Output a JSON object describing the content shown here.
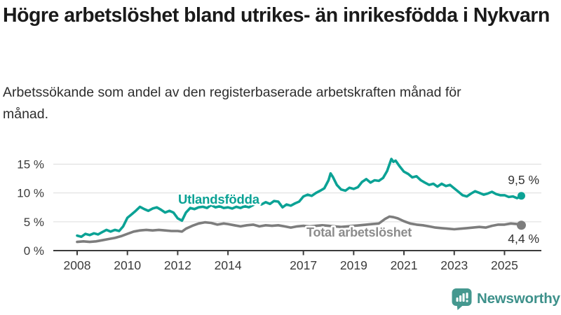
{
  "title": "Högre arbetslöshet bland utrikes- än inrikesfödda i Nykvarn",
  "subtitle": "Arbetssökande som andel av den registerbaserade arbetskraften månad för månad.",
  "colors": {
    "accent_teal": "#0ba295",
    "line_gray": "#7d7d7d",
    "grid": "#dcdcdc",
    "axis": "#3b3b3b",
    "value_label": "#333333"
  },
  "chart_data": {
    "type": "line",
    "grid": "horizontal",
    "legend_position": "inline-labels",
    "x_axis": {
      "range": [
        2007.9,
        2026.3
      ],
      "ticks": [
        {
          "label": "2008",
          "value": 2008
        },
        {
          "label": "2010",
          "value": 2010
        },
        {
          "label": "2012",
          "value": 2012
        },
        {
          "label": "2014",
          "value": 2014
        },
        {
          "label": "2017",
          "value": 2017
        },
        {
          "label": "2019",
          "value": 2019
        },
        {
          "label": "2021",
          "value": 2021
        },
        {
          "label": "2023",
          "value": 2023
        },
        {
          "label": "2025",
          "value": 2025
        }
      ]
    },
    "y_axis": {
      "range": [
        0,
        17.5
      ],
      "unit": "%",
      "ticks": [
        {
          "label": "0 %",
          "value": 0
        },
        {
          "label": "5 %",
          "value": 5
        },
        {
          "label": "10 %",
          "value": 10
        },
        {
          "label": "15 %",
          "value": 15
        }
      ]
    },
    "series": [
      {
        "id": "utlandsfodda",
        "name": "Utlandsfödda",
        "color": "#0ba295",
        "label_color": "#0ba295",
        "end_label": "9,5 %",
        "end_value": 9.5,
        "points": [
          [
            2008.0,
            2.6
          ],
          [
            2008.17,
            2.4
          ],
          [
            2008.33,
            2.9
          ],
          [
            2008.5,
            2.7
          ],
          [
            2008.67,
            3.0
          ],
          [
            2008.83,
            2.8
          ],
          [
            2009.0,
            3.2
          ],
          [
            2009.17,
            3.6
          ],
          [
            2009.33,
            3.3
          ],
          [
            2009.5,
            3.6
          ],
          [
            2009.67,
            3.4
          ],
          [
            2009.83,
            4.2
          ],
          [
            2010.0,
            5.7
          ],
          [
            2010.17,
            6.3
          ],
          [
            2010.33,
            6.9
          ],
          [
            2010.5,
            7.6
          ],
          [
            2010.67,
            7.2
          ],
          [
            2010.83,
            6.9
          ],
          [
            2011.0,
            7.3
          ],
          [
            2011.17,
            7.5
          ],
          [
            2011.33,
            7.1
          ],
          [
            2011.5,
            6.6
          ],
          [
            2011.67,
            6.9
          ],
          [
            2011.83,
            6.6
          ],
          [
            2012.0,
            5.6
          ],
          [
            2012.08,
            5.4
          ],
          [
            2012.17,
            5.2
          ],
          [
            2012.33,
            6.6
          ],
          [
            2012.5,
            7.4
          ],
          [
            2012.67,
            7.2
          ],
          [
            2012.83,
            7.5
          ],
          [
            2013.0,
            7.6
          ],
          [
            2013.17,
            7.4
          ],
          [
            2013.33,
            7.9
          ],
          [
            2013.5,
            7.5
          ],
          [
            2013.67,
            7.7
          ],
          [
            2013.83,
            7.4
          ],
          [
            2014.0,
            7.5
          ],
          [
            2014.17,
            7.3
          ],
          [
            2014.33,
            7.6
          ],
          [
            2014.5,
            7.4
          ],
          [
            2014.67,
            7.7
          ],
          [
            2014.83,
            7.5
          ],
          [
            2015.0,
            7.9
          ],
          [
            2015.17,
            8.3
          ],
          [
            2015.33,
            8.0
          ],
          [
            2015.5,
            8.4
          ],
          [
            2015.67,
            8.1
          ],
          [
            2015.83,
            8.6
          ],
          [
            2016.0,
            8.5
          ],
          [
            2016.17,
            7.5
          ],
          [
            2016.33,
            8.0
          ],
          [
            2016.5,
            7.8
          ],
          [
            2016.67,
            8.2
          ],
          [
            2016.83,
            8.5
          ],
          [
            2017.0,
            9.4
          ],
          [
            2017.17,
            9.7
          ],
          [
            2017.33,
            9.5
          ],
          [
            2017.5,
            10.0
          ],
          [
            2017.67,
            10.4
          ],
          [
            2017.83,
            10.8
          ],
          [
            2018.0,
            12.2
          ],
          [
            2018.08,
            13.4
          ],
          [
            2018.17,
            12.8
          ],
          [
            2018.33,
            11.4
          ],
          [
            2018.5,
            10.6
          ],
          [
            2018.67,
            10.4
          ],
          [
            2018.83,
            10.9
          ],
          [
            2019.0,
            10.7
          ],
          [
            2019.17,
            11.0
          ],
          [
            2019.33,
            11.9
          ],
          [
            2019.5,
            12.4
          ],
          [
            2019.67,
            11.8
          ],
          [
            2019.83,
            12.2
          ],
          [
            2020.0,
            12.1
          ],
          [
            2020.17,
            12.6
          ],
          [
            2020.33,
            13.8
          ],
          [
            2020.5,
            15.9
          ],
          [
            2020.58,
            15.4
          ],
          [
            2020.67,
            15.6
          ],
          [
            2020.83,
            14.6
          ],
          [
            2021.0,
            13.7
          ],
          [
            2021.17,
            13.3
          ],
          [
            2021.33,
            12.7
          ],
          [
            2021.5,
            12.9
          ],
          [
            2021.67,
            12.2
          ],
          [
            2021.83,
            11.8
          ],
          [
            2022.0,
            11.4
          ],
          [
            2022.17,
            11.6
          ],
          [
            2022.33,
            11.1
          ],
          [
            2022.5,
            11.6
          ],
          [
            2022.67,
            11.2
          ],
          [
            2022.83,
            11.4
          ],
          [
            2023.0,
            10.8
          ],
          [
            2023.17,
            10.2
          ],
          [
            2023.33,
            9.6
          ],
          [
            2023.5,
            9.4
          ],
          [
            2023.67,
            9.9
          ],
          [
            2023.83,
            10.3
          ],
          [
            2024.0,
            10.0
          ],
          [
            2024.17,
            9.7
          ],
          [
            2024.33,
            9.9
          ],
          [
            2024.5,
            10.2
          ],
          [
            2024.67,
            9.8
          ],
          [
            2024.83,
            9.6
          ],
          [
            2025.0,
            9.6
          ],
          [
            2025.17,
            9.3
          ],
          [
            2025.33,
            9.4
          ],
          [
            2025.5,
            9.1
          ],
          [
            2025.67,
            9.5
          ]
        ]
      },
      {
        "id": "total",
        "name": "Total arbetslöshet",
        "color": "#7d7d7d",
        "label_color": "#8c8c8c",
        "end_label": "4,4 %",
        "end_value": 4.4,
        "points": [
          [
            2008.0,
            1.5
          ],
          [
            2008.25,
            1.6
          ],
          [
            2008.5,
            1.5
          ],
          [
            2008.75,
            1.6
          ],
          [
            2009.0,
            1.8
          ],
          [
            2009.25,
            2.0
          ],
          [
            2009.5,
            2.2
          ],
          [
            2009.75,
            2.5
          ],
          [
            2010.0,
            2.9
          ],
          [
            2010.25,
            3.3
          ],
          [
            2010.5,
            3.5
          ],
          [
            2010.75,
            3.6
          ],
          [
            2011.0,
            3.5
          ],
          [
            2011.25,
            3.6
          ],
          [
            2011.5,
            3.5
          ],
          [
            2011.75,
            3.4
          ],
          [
            2012.0,
            3.4
          ],
          [
            2012.17,
            3.3
          ],
          [
            2012.33,
            3.8
          ],
          [
            2012.58,
            4.3
          ],
          [
            2012.83,
            4.7
          ],
          [
            2013.08,
            4.9
          ],
          [
            2013.33,
            4.8
          ],
          [
            2013.58,
            4.5
          ],
          [
            2013.83,
            4.7
          ],
          [
            2014.0,
            4.6
          ],
          [
            2014.25,
            4.4
          ],
          [
            2014.5,
            4.2
          ],
          [
            2014.75,
            4.4
          ],
          [
            2015.0,
            4.5
          ],
          [
            2015.25,
            4.2
          ],
          [
            2015.5,
            4.4
          ],
          [
            2015.75,
            4.3
          ],
          [
            2016.0,
            4.4
          ],
          [
            2016.25,
            4.2
          ],
          [
            2016.5,
            4.0
          ],
          [
            2016.75,
            4.2
          ],
          [
            2017.0,
            4.3
          ],
          [
            2017.25,
            4.2
          ],
          [
            2017.5,
            4.3
          ],
          [
            2017.75,
            4.4
          ],
          [
            2018.0,
            4.3
          ],
          [
            2018.25,
            4.2
          ],
          [
            2018.5,
            4.1
          ],
          [
            2018.75,
            4.2
          ],
          [
            2019.0,
            4.3
          ],
          [
            2019.25,
            4.4
          ],
          [
            2019.5,
            4.5
          ],
          [
            2019.75,
            4.6
          ],
          [
            2020.0,
            4.7
          ],
          [
            2020.25,
            5.5
          ],
          [
            2020.42,
            5.9
          ],
          [
            2020.58,
            5.8
          ],
          [
            2020.75,
            5.6
          ],
          [
            2021.0,
            5.1
          ],
          [
            2021.25,
            4.7
          ],
          [
            2021.5,
            4.5
          ],
          [
            2021.75,
            4.4
          ],
          [
            2022.0,
            4.2
          ],
          [
            2022.25,
            4.0
          ],
          [
            2022.5,
            3.9
          ],
          [
            2022.75,
            3.8
          ],
          [
            2023.0,
            3.7
          ],
          [
            2023.25,
            3.8
          ],
          [
            2023.5,
            3.9
          ],
          [
            2023.75,
            4.0
          ],
          [
            2024.0,
            4.1
          ],
          [
            2024.25,
            4.0
          ],
          [
            2024.5,
            4.3
          ],
          [
            2024.75,
            4.5
          ],
          [
            2025.0,
            4.5
          ],
          [
            2025.25,
            4.7
          ],
          [
            2025.5,
            4.6
          ],
          [
            2025.67,
            4.4
          ]
        ]
      }
    ]
  },
  "logo": {
    "text": "Newsworthy",
    "icon": "bar-chart-speech-bubble",
    "icon_color": "#45988f",
    "text_color": "#3e918b"
  }
}
